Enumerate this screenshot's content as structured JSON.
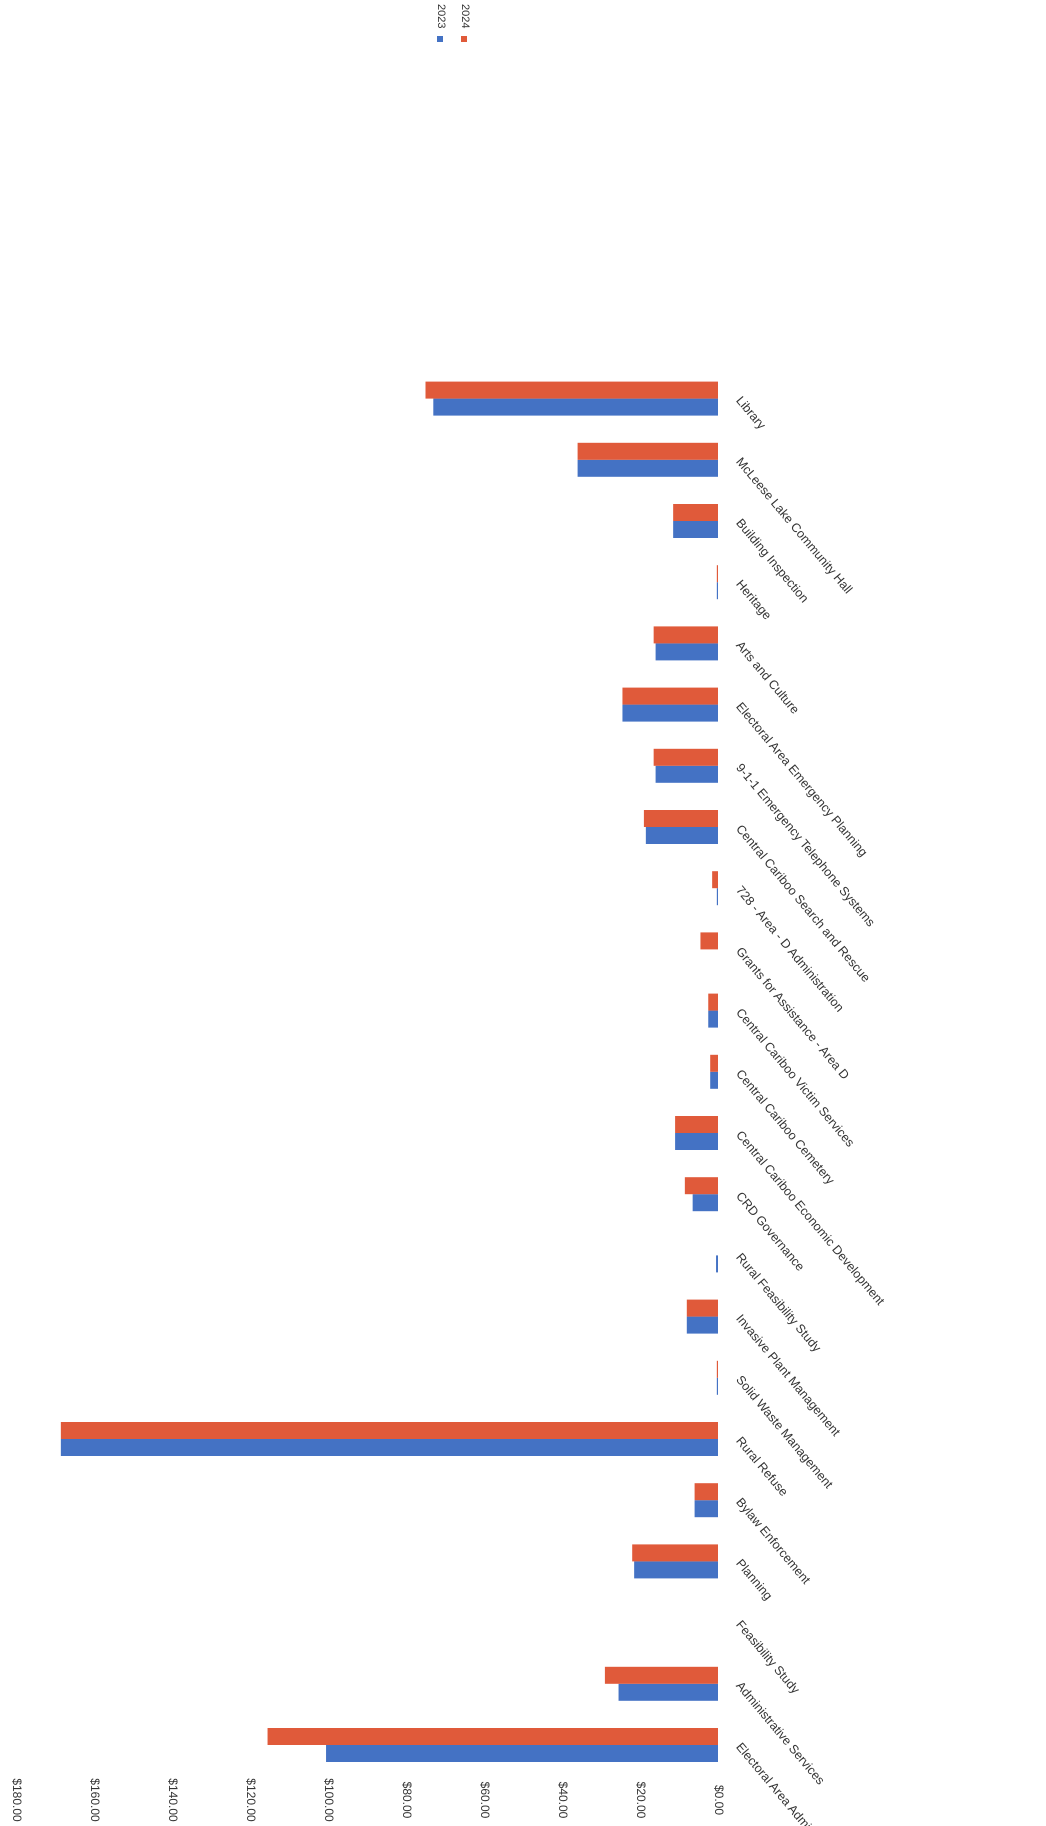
{
  "chart_data": {
    "type": "bar",
    "orientation": "rotated",
    "categories": [
      "Electoral Area Administration",
      "Administrative Services",
      "Feasibility Study",
      "Planning",
      "Bylaw Enforcement",
      "Rural Refuse",
      "Solid Waste Management",
      "Invasive Plant Management",
      "Rural Feasibility Study",
      "CRD Governance",
      "Central Cariboo Economic Development",
      "Central Cariboo Cemetery",
      "Central Cariboo Victim Services",
      "Grants for Assistance - Area D",
      "728 - Area - D Administration",
      "Central Cariboo Search and Rescue",
      "9-1-1 Emergency Telephone Systems",
      "Electoral Area Emergency Planning",
      "Arts and Culture",
      "Heritage",
      "Building Inspection",
      "McLeese Lake Community Hall",
      "Library"
    ],
    "series": [
      {
        "name": "2023",
        "color": "#4472c4",
        "values": [
          100.5,
          25.5,
          0,
          21.5,
          6,
          168.5,
          0.3,
          8,
          0.5,
          6.5,
          11,
          2,
          2.5,
          0,
          0.3,
          18.5,
          16,
          24.5,
          16,
          0.3,
          11.5,
          36,
          73
        ]
      },
      {
        "name": "2024",
        "color": "#e05a3a",
        "values": [
          115.5,
          29,
          0,
          22,
          6,
          168.5,
          0.3,
          8,
          0,
          8.5,
          11,
          2,
          2.5,
          4.5,
          1.5,
          19,
          16.5,
          24.5,
          16.5,
          0.3,
          11.5,
          36,
          75
        ]
      }
    ],
    "y_ticks": [
      "$0.00",
      "$20.00",
      "$40.00",
      "$60.00",
      "$80.00",
      "$100.00",
      "$120.00",
      "$140.00",
      "$160.00",
      "$180.00"
    ],
    "ylim": [
      0,
      180
    ],
    "legend": {
      "position": "top-right",
      "labels": [
        "2023",
        "2024"
      ]
    },
    "grid": false
  }
}
